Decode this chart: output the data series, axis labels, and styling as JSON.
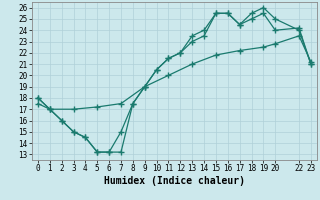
{
  "xlabel": "Humidex (Indice chaleur)",
  "xlim": [
    -0.5,
    23.5
  ],
  "ylim": [
    12.5,
    26.5
  ],
  "xticks": [
    0,
    1,
    2,
    3,
    4,
    5,
    6,
    7,
    8,
    9,
    10,
    11,
    12,
    13,
    14,
    15,
    16,
    17,
    18,
    19,
    20,
    22,
    23
  ],
  "xtick_labels": [
    "0",
    "1",
    "2",
    "3",
    "4",
    "5",
    "6",
    "7",
    "8",
    "9",
    "10",
    "11",
    "12",
    "13",
    "14",
    "15",
    "16",
    "17",
    "18",
    "19",
    "20",
    "22",
    "23"
  ],
  "yticks": [
    13,
    14,
    15,
    16,
    17,
    18,
    19,
    20,
    21,
    22,
    23,
    24,
    25,
    26
  ],
  "line_color": "#1a7a6e",
  "bg_color": "#cce8ec",
  "grid_color": "#b0d0d8",
  "line1_x": [
    0,
    1,
    2,
    3,
    4,
    5,
    6,
    7,
    8,
    9,
    10,
    11,
    12,
    13,
    14,
    15,
    16,
    17,
    18,
    19,
    20,
    22,
    23
  ],
  "line1_y": [
    18,
    17,
    16,
    15,
    14.5,
    13.2,
    13.2,
    13.2,
    17.5,
    19,
    20.5,
    21.5,
    22,
    23.5,
    24,
    25.5,
    25.5,
    24.5,
    25,
    25.5,
    24,
    24.2,
    21
  ],
  "line2_x": [
    0,
    1,
    2,
    3,
    4,
    5,
    6,
    7,
    8,
    9,
    10,
    11,
    12,
    13,
    14,
    15,
    16,
    17,
    18,
    19,
    20,
    22,
    23
  ],
  "line2_y": [
    18,
    17,
    16,
    15,
    14.5,
    13.2,
    13.2,
    15,
    17.5,
    19,
    20.5,
    21.5,
    22,
    23,
    23.5,
    25.5,
    25.5,
    24.5,
    25.5,
    26,
    25,
    24,
    21
  ],
  "line3_x": [
    0,
    1,
    3,
    5,
    7,
    9,
    11,
    13,
    15,
    17,
    19,
    20,
    22,
    23
  ],
  "line3_y": [
    17.5,
    17,
    17,
    17.2,
    17.5,
    19,
    20,
    21,
    21.8,
    22.2,
    22.5,
    22.8,
    23.5,
    21.2
  ],
  "marker": "+",
  "markersize": 4,
  "linewidth": 0.9,
  "fontsize_tick": 5.5,
  "fontsize_xlabel": 7
}
